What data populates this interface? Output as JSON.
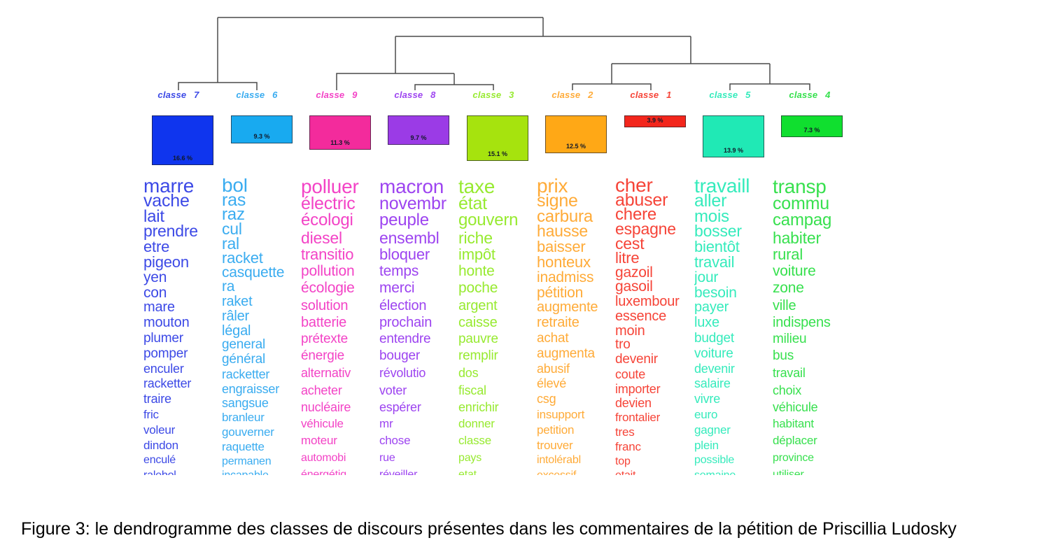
{
  "caption": "Figure 3: le dendrogramme des classes de discours présentes dans les commentaires de la pétition de Priscillia Ludosky",
  "chart_data": {
    "type": "dendrogram",
    "description": "Dendrogramme de classification (type Reinert/IRaMuTeQ) avec 9 classes, pourcentages et nuages de mots caractéristiques",
    "tree_newick": "((classe 7, classe 6), ((classe 9, (classe 8, classe 3)), ((classe 2, classe 1), (classe 5, classe 4))))",
    "dendrogram_line_color": "#4a4a4a",
    "classes": [
      {
        "label": "classe 7",
        "percent_label": "16.6 %",
        "percent": 16.6,
        "box_color": "#0f35ee",
        "word_color": "#3c49e6",
        "words": [
          "marre",
          "vache",
          "lait",
          "prendre",
          "etre",
          "pigeon",
          "yen",
          "con",
          "mare",
          "mouton",
          "plumer",
          "pomper",
          "enculer",
          "racketter",
          "traire",
          "fric",
          "voleur",
          "dindon",
          "enculé",
          "ralebol"
        ]
      },
      {
        "label": "classe 6",
        "percent_label": "9.3 %",
        "percent": 9.3,
        "box_color": "#18aaf0",
        "word_color": "#3aacf0",
        "words": [
          "bol",
          "ras",
          "raz",
          "cul",
          "ral",
          "racket",
          "casquette",
          "ra",
          "raket",
          "râler",
          "légal",
          "general",
          "général",
          "racketter",
          "engraisser",
          "sangsue",
          "branleur",
          "gouverner",
          "raquette",
          "permanen",
          "incapable"
        ]
      },
      {
        "label": "classe 9",
        "percent_label": "11.3 %",
        "percent": 11.3,
        "box_color": "#f32b9c",
        "word_color": "#f343c6",
        "words": [
          "polluer",
          "électric",
          "écologi",
          "diesel",
          "transitio",
          "pollution",
          "écologie",
          "solution",
          "batterie",
          "prétexte",
          "énergie",
          "alternativ",
          "acheter",
          "nucléaire",
          "véhicule",
          "moteur",
          "automobi",
          "énergétiq"
        ]
      },
      {
        "label": "classe 8",
        "percent_label": "9.7 %",
        "percent": 9.7,
        "box_color": "#9b3be6",
        "word_color": "#9d44f0",
        "words": [
          "macron",
          "novembr",
          "peuple",
          "ensembl",
          "bloquer",
          "temps",
          "merci",
          "élection",
          "prochain",
          "entendre",
          "bouger",
          "révolutio",
          "voter",
          "espérer",
          "mr",
          "chose",
          "rue",
          "réveiller"
        ]
      },
      {
        "label": "classe 3",
        "percent_label": "15.1 %",
        "percent": 15.1,
        "box_color": "#a6e30e",
        "word_color": "#97ea30",
        "words": [
          "taxe",
          "état",
          "gouvern",
          "riche",
          "impôt",
          "honte",
          "poche",
          "argent",
          "caisse",
          "pauvre",
          "remplir",
          "dos",
          "fiscal",
          "enrichir",
          "donner",
          "classe",
          "pays",
          "etat"
        ]
      },
      {
        "label": "classe 2",
        "percent_label": "12.5 %",
        "percent": 12.5,
        "box_color": "#ffa816",
        "word_color": "#ffab38",
        "words": [
          "prix",
          "signe",
          "carbura",
          "hausse",
          "baisser",
          "honteux",
          "inadmiss",
          "pétition",
          "augmente",
          "retraite",
          "achat",
          "augmenta",
          "abusif",
          "élevé",
          "csg",
          "insupport",
          "petition",
          "trouver",
          "intolérabl",
          "excessif"
        ]
      },
      {
        "label": "classe 1",
        "percent_label": "3.9 %",
        "percent": 3.9,
        "box_color": "#f3261c",
        "word_color": "#f64438",
        "words": [
          "cher",
          "abuser",
          "chere",
          "espagne",
          "cest",
          "litre",
          "gazoil",
          "gasoil",
          "luxembour",
          "essence",
          "moin",
          "tro",
          "devenir",
          "coute",
          "importer",
          "devien",
          "frontalier",
          "tres",
          "franc",
          "top",
          "etait"
        ]
      },
      {
        "label": "classe 5",
        "percent_label": "13.9 %",
        "percent": 13.9,
        "box_color": "#20e9b5",
        "word_color": "#35ebbc",
        "words": [
          "travaill",
          "aller",
          "mois",
          "bosser",
          "bientôt",
          "travail",
          "jour",
          "besoin",
          "payer",
          "luxe",
          "budget",
          "voiture",
          "devenir",
          "salaire",
          "vivre",
          "euro",
          "gagner",
          "plein",
          "possible",
          "semaine"
        ]
      },
      {
        "label": "classe 4",
        "percent_label": "7.3 %",
        "percent": 7.3,
        "box_color": "#10df2f",
        "word_color": "#37e04e",
        "words": [
          "transp",
          "commu",
          "campag",
          "habiter",
          "rural",
          "voiture",
          "zone",
          "ville",
          "indispens",
          "milieu",
          "bus",
          "travail",
          "choix",
          "véhicule",
          "habitant",
          "déplacer",
          "province",
          "utiliser"
        ]
      }
    ]
  }
}
